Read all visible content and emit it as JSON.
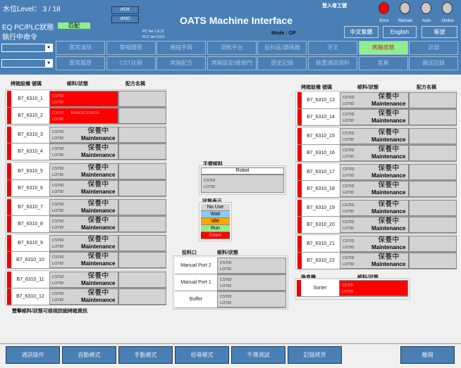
{
  "header": {
    "level": "水位Level： 3 / 18",
    "dok": "dIOK",
    "dno": "dINO",
    "title": "OATS Machine Interface",
    "login": "登入者工號",
    "eq_status_label": "EQ PC/PLC狀態",
    "eq_status_value": "匹配",
    "exec_cmd": "執行中命令",
    "pc_ver": "PC Ver 1.0.21",
    "plc_ver": "PLC Ver 0.0.0",
    "mode": "Mode : OP",
    "lang_zh": "中文繁體",
    "lang_en": "English",
    "account": "帳號",
    "lights": [
      {
        "label": "Error",
        "color": "#ff0000"
      },
      {
        "label": "Manual",
        "color": "#c8c8c8"
      },
      {
        "label": "Auto",
        "color": "#c8c8c8"
      },
      {
        "label": "Online",
        "color": "#c8c8c8"
      }
    ]
  },
  "nav_row1": [
    "異常清除",
    "警報關閉",
    "機械手臂",
    "滑軌平台",
    "投料區/讀碼器",
    "牙叉",
    "烤箱狀態",
    "訊號"
  ],
  "nav_row2": [
    "異常履歷",
    "CST註冊",
    "烤箱配方",
    "烤箱設定/維修門",
    "歷史記錄",
    "裝置通訊資料",
    "首頁",
    "搬送記錄"
  ],
  "active_nav": "烤箱狀態",
  "oven_headers": {
    "id": "烤箱設備 號碼",
    "status": "帳料/狀態",
    "recipe": "配方名稱"
  },
  "cst_label": "CSTID",
  "lot_label": "LOTID",
  "maint_zh": "保養中",
  "maint_en": "Maintenance",
  "ovens_left": [
    {
      "id": "B7_6310_1",
      "state": "down",
      "cstid": ""
    },
    {
      "id": "B7_6310_2",
      "state": "down",
      "cstid": "MSM182150015"
    },
    {
      "id": "B7_6310_3",
      "state": "maint"
    },
    {
      "id": "B7_6310_4",
      "state": "maint"
    },
    {
      "id": "B7_6310_5",
      "state": "maint"
    },
    {
      "id": "B7_6310_6",
      "state": "maint"
    },
    {
      "id": "B7_6310_7",
      "state": "maint"
    },
    {
      "id": "B7_6310_8",
      "state": "maint"
    },
    {
      "id": "B7_6310_9",
      "state": "maint"
    },
    {
      "id": "B7_6310_10",
      "state": "maint"
    },
    {
      "id": "B7_6310_11",
      "state": "maint"
    },
    {
      "id": "B7_6310_12",
      "state": "maint"
    }
  ],
  "ovens_right": [
    {
      "id": "B7_6310_13",
      "state": "maint"
    },
    {
      "id": "B7_6310_14",
      "state": "maint"
    },
    {
      "id": "B7_6310_15",
      "state": "maint"
    },
    {
      "id": "B7_6310_16",
      "state": "maint"
    },
    {
      "id": "B7_6310_17",
      "state": "maint"
    },
    {
      "id": "B7_6310_18",
      "state": "maint"
    },
    {
      "id": "B7_6310_19",
      "state": "maint"
    },
    {
      "id": "B7_6310_20",
      "state": "maint"
    },
    {
      "id": "B7_6310_21",
      "state": "maint"
    },
    {
      "id": "B7_6310_22",
      "state": "maint"
    }
  ],
  "robot": {
    "label": "手臂帳料",
    "name": "Robot"
  },
  "legend": {
    "label": "狀態表示",
    "items": [
      {
        "text": "No Use",
        "bg": "#d3d3d3",
        "fg": "#000"
      },
      {
        "text": "Wait",
        "bg": "#87cefa",
        "fg": "#000"
      },
      {
        "text": "Idle",
        "bg": "#ffa500",
        "fg": "#000"
      },
      {
        "text": "Run",
        "bg": "#90ee90",
        "fg": "#000"
      },
      {
        "text": "Down",
        "bg": "#ff0000",
        "fg": "#ffb0b0"
      }
    ]
  },
  "ports": {
    "label": "投料口",
    "status": "帳料/狀態",
    "items": [
      "Manual Port 2",
      "Manual Port 1",
      "Buffer"
    ]
  },
  "sorter": {
    "label": "換盒機",
    "status": "帳料/狀態",
    "name": "Sorter"
  },
  "footnote": "雙擊帳料/狀態可檢視詳細烤箱資訊",
  "bottom": [
    "通訊操作",
    "自動模式",
    "手動模式",
    "校導模式",
    "千傳測試",
    "記錄拷貝"
  ],
  "exit": "離開"
}
